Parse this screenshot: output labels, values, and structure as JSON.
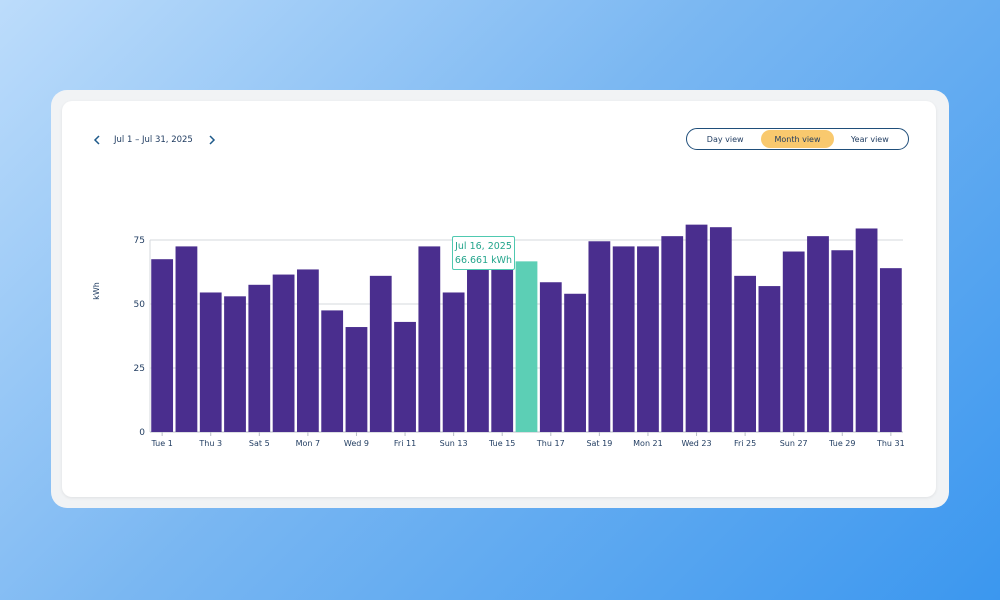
{
  "header": {
    "date_range": "Jul 1 – Jul 31, 2025",
    "prev_icon": "chevron-left-icon",
    "next_icon": "chevron-right-icon"
  },
  "view_toggle": {
    "options": [
      "Day view",
      "Month view",
      "Year view"
    ],
    "selected": "Month view"
  },
  "colors": {
    "bar": "#4a2e8e",
    "highlight": "#5ccfb5",
    "accent": "#f9c96e",
    "text": "#1e3a5f"
  },
  "tooltip": {
    "date": "Jul 16, 2025",
    "value": "66.661 kWh"
  },
  "chart_data": {
    "type": "bar",
    "ylabel": "kWh",
    "ylim": [
      0,
      75
    ],
    "yticks": [
      0,
      25,
      50,
      75
    ],
    "grid": true,
    "highlight_index": 15,
    "categories": [
      "Jul 1",
      "Jul 2",
      "Jul 3",
      "Jul 4",
      "Jul 5",
      "Jul 6",
      "Jul 7",
      "Jul 8",
      "Jul 9",
      "Jul 10",
      "Jul 11",
      "Jul 12",
      "Jul 13",
      "Jul 14",
      "Jul 15",
      "Jul 16",
      "Jul 17",
      "Jul 18",
      "Jul 19",
      "Jul 20",
      "Jul 21",
      "Jul 22",
      "Jul 23",
      "Jul 24",
      "Jul 25",
      "Jul 26",
      "Jul 27",
      "Jul 28",
      "Jul 29",
      "Jul 30",
      "Jul 31"
    ],
    "x_tick_labels": [
      "Tue 1",
      "Thu 3",
      "Sat 5",
      "Mon 7",
      "Wed 9",
      "Fri 11",
      "Sun 13",
      "Tue 15",
      "Thu 17",
      "Sat 19",
      "Mon 21",
      "Wed 23",
      "Fri 25",
      "Sun 27",
      "Tue 29",
      "Thu 31"
    ],
    "values": [
      67.5,
      72.5,
      54.5,
      53.0,
      57.5,
      61.5,
      63.5,
      47.5,
      41.0,
      61.0,
      43.0,
      72.5,
      54.5,
      64.5,
      64.5,
      66.661,
      58.5,
      54.0,
      74.5,
      72.5,
      72.5,
      76.5,
      81.0,
      80.0,
      61.0,
      57.0,
      70.5,
      76.5,
      71.0,
      79.5,
      64.0
    ]
  }
}
